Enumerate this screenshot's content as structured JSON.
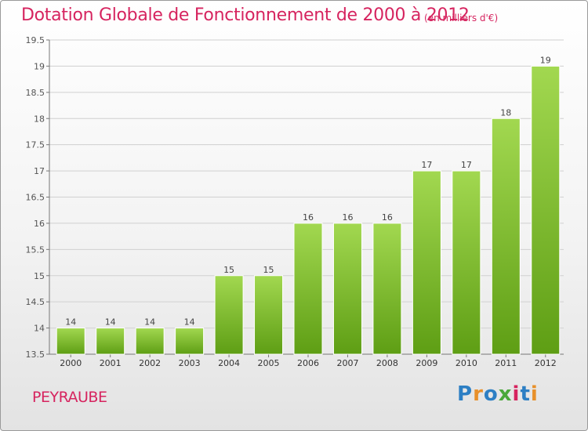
{
  "title": "Dotation Globale de Fonctionnement de 2000 à 2012",
  "subtitle": "(en milliers d'€)",
  "commune": "PEYRAUBE",
  "logo": {
    "letters": [
      "P",
      "r",
      "o",
      "x",
      "i",
      "t",
      "i"
    ]
  },
  "colors": {
    "title": "#d6245f",
    "bar_top": "#9fd54a",
    "bar_bottom": "#5e9e14",
    "grid": "#cfcfcf"
  },
  "chart_data": {
    "type": "bar",
    "title": "Dotation Globale de Fonctionnement de 2000 à 2012",
    "ylabel": "(en milliers d'€)",
    "xlabel": "",
    "categories": [
      "2000",
      "2001",
      "2002",
      "2003",
      "2004",
      "2005",
      "2006",
      "2007",
      "2008",
      "2009",
      "2010",
      "2011",
      "2012"
    ],
    "values": [
      14,
      14,
      14,
      14,
      15,
      15,
      16,
      16,
      16,
      17,
      17,
      18,
      19
    ],
    "ylim": [
      13.5,
      19.5
    ],
    "yticks": [
      "13.5",
      "14",
      "14.5",
      "15",
      "15.5",
      "16",
      "16.5",
      "17",
      "17.5",
      "18",
      "18.5",
      "19",
      "19.5"
    ],
    "grid": true
  }
}
